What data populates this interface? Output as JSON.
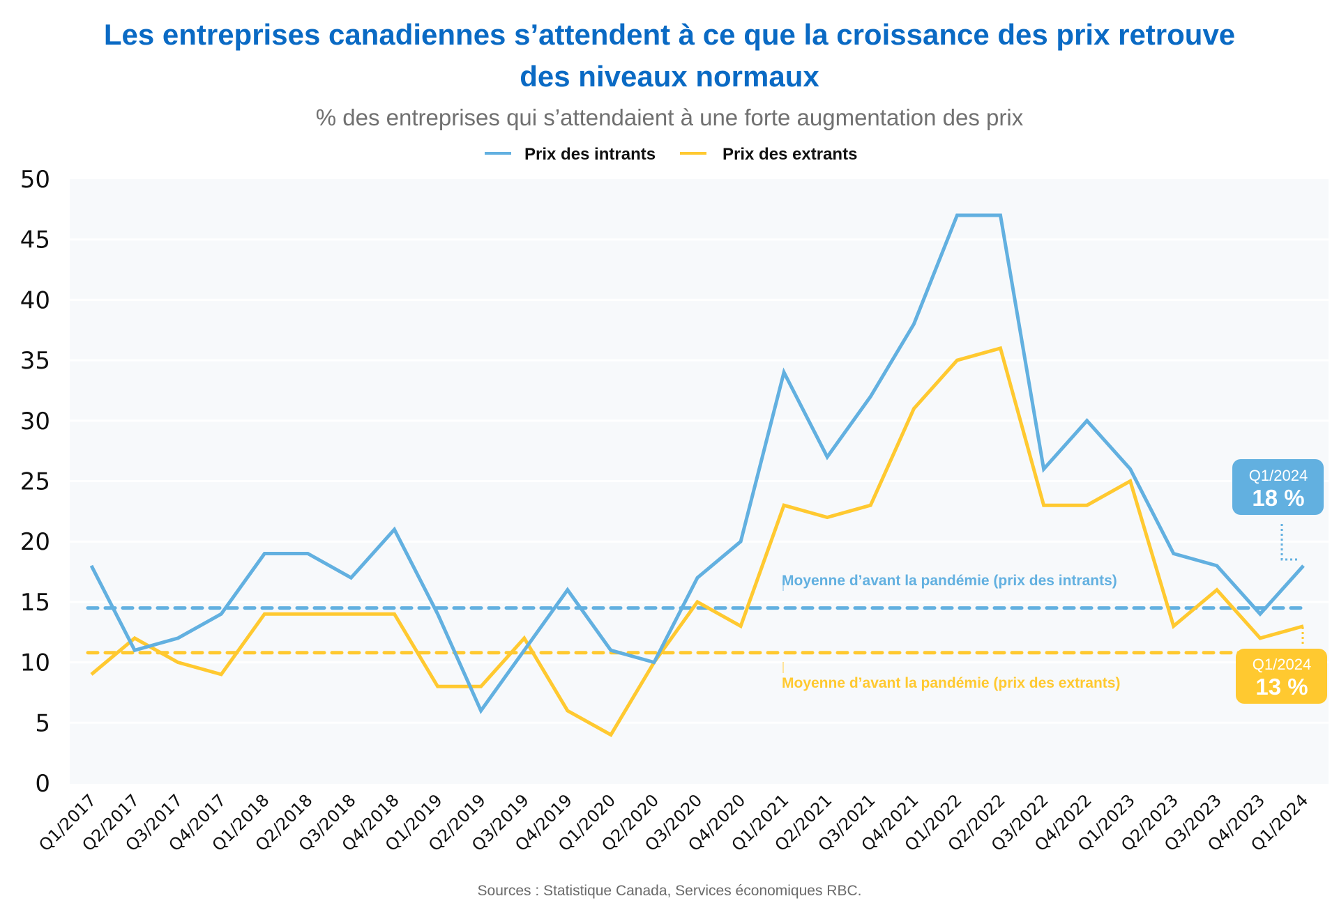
{
  "colors": {
    "title": "#0a6ac4",
    "intrants": "#62b0e0",
    "extrants": "#ffc930",
    "plot_bg": "#f7f9fb",
    "grid": "#ffffff"
  },
  "chart_data": {
    "type": "line",
    "title": "Les entreprises canadiennes s’attendent à ce que la croissance des prix retrouve des niveaux normaux",
    "title_lines": [
      "Les entreprises canadiennes s’attendent à ce que la croissance des prix retrouve",
      "des niveaux normaux"
    ],
    "subtitle": "% des entreprises qui s’attendaient à une forte augmentation des prix",
    "xlabel": "",
    "ylabel": "",
    "ylim": [
      0,
      50
    ],
    "yticks": [
      0,
      5,
      10,
      15,
      20,
      25,
      30,
      35,
      40,
      45,
      50
    ],
    "grid": true,
    "legend_position": "top-center",
    "categories": [
      "Q1/2017",
      "Q2/2017",
      "Q3/2017",
      "Q4/2017",
      "Q1/2018",
      "Q2/2018",
      "Q3/2018",
      "Q4/2018",
      "Q1/2019",
      "Q2/2019",
      "Q3/2019",
      "Q4/2019",
      "Q1/2020",
      "Q2/2020",
      "Q3/2020",
      "Q4/2020",
      "Q1/2021",
      "Q2/2021",
      "Q3/2021",
      "Q4/2021",
      "Q1/2022",
      "Q2/2022",
      "Q3/2022",
      "Q4/2022",
      "Q1/2023",
      "Q2/2023",
      "Q3/2023",
      "Q4/2023",
      "Q1/2024"
    ],
    "series": [
      {
        "name": "Prix des intrants",
        "color": "#62b0e0",
        "values": [
          18,
          11,
          12,
          14,
          19,
          19,
          17,
          21,
          14,
          6,
          11,
          16,
          11,
          10,
          17,
          20,
          34,
          27,
          32,
          38,
          47,
          47,
          26,
          30,
          26,
          19,
          18,
          14,
          18
        ]
      },
      {
        "name": "Prix des extrants",
        "color": "#ffc930",
        "values": [
          9,
          12,
          10,
          9,
          14,
          14,
          14,
          14,
          8,
          8,
          12,
          6,
          4,
          10,
          15,
          13,
          23,
          22,
          23,
          31,
          35,
          36,
          23,
          23,
          25,
          13,
          16,
          12,
          13
        ]
      }
    ],
    "reference_lines": [
      {
        "name": "Moyenne d’avant la pandémie (prix des intrants)",
        "value": 14.5,
        "color": "#62b0e0",
        "style": "dashed"
      },
      {
        "name": "Moyenne d’avant la pandémie (prix des extrants)",
        "value": 10.8,
        "color": "#ffc930",
        "style": "dashed"
      }
    ],
    "annotations": [
      {
        "series": "Prix des intrants",
        "period": "Q1/2024",
        "label": "18 %",
        "color": "#62b0e0"
      },
      {
        "series": "Prix des extrants",
        "period": "Q1/2024",
        "label": "13 %",
        "color": "#ffc930"
      }
    ],
    "source": "Sources : Statistique Canada, Services économiques RBC."
  }
}
